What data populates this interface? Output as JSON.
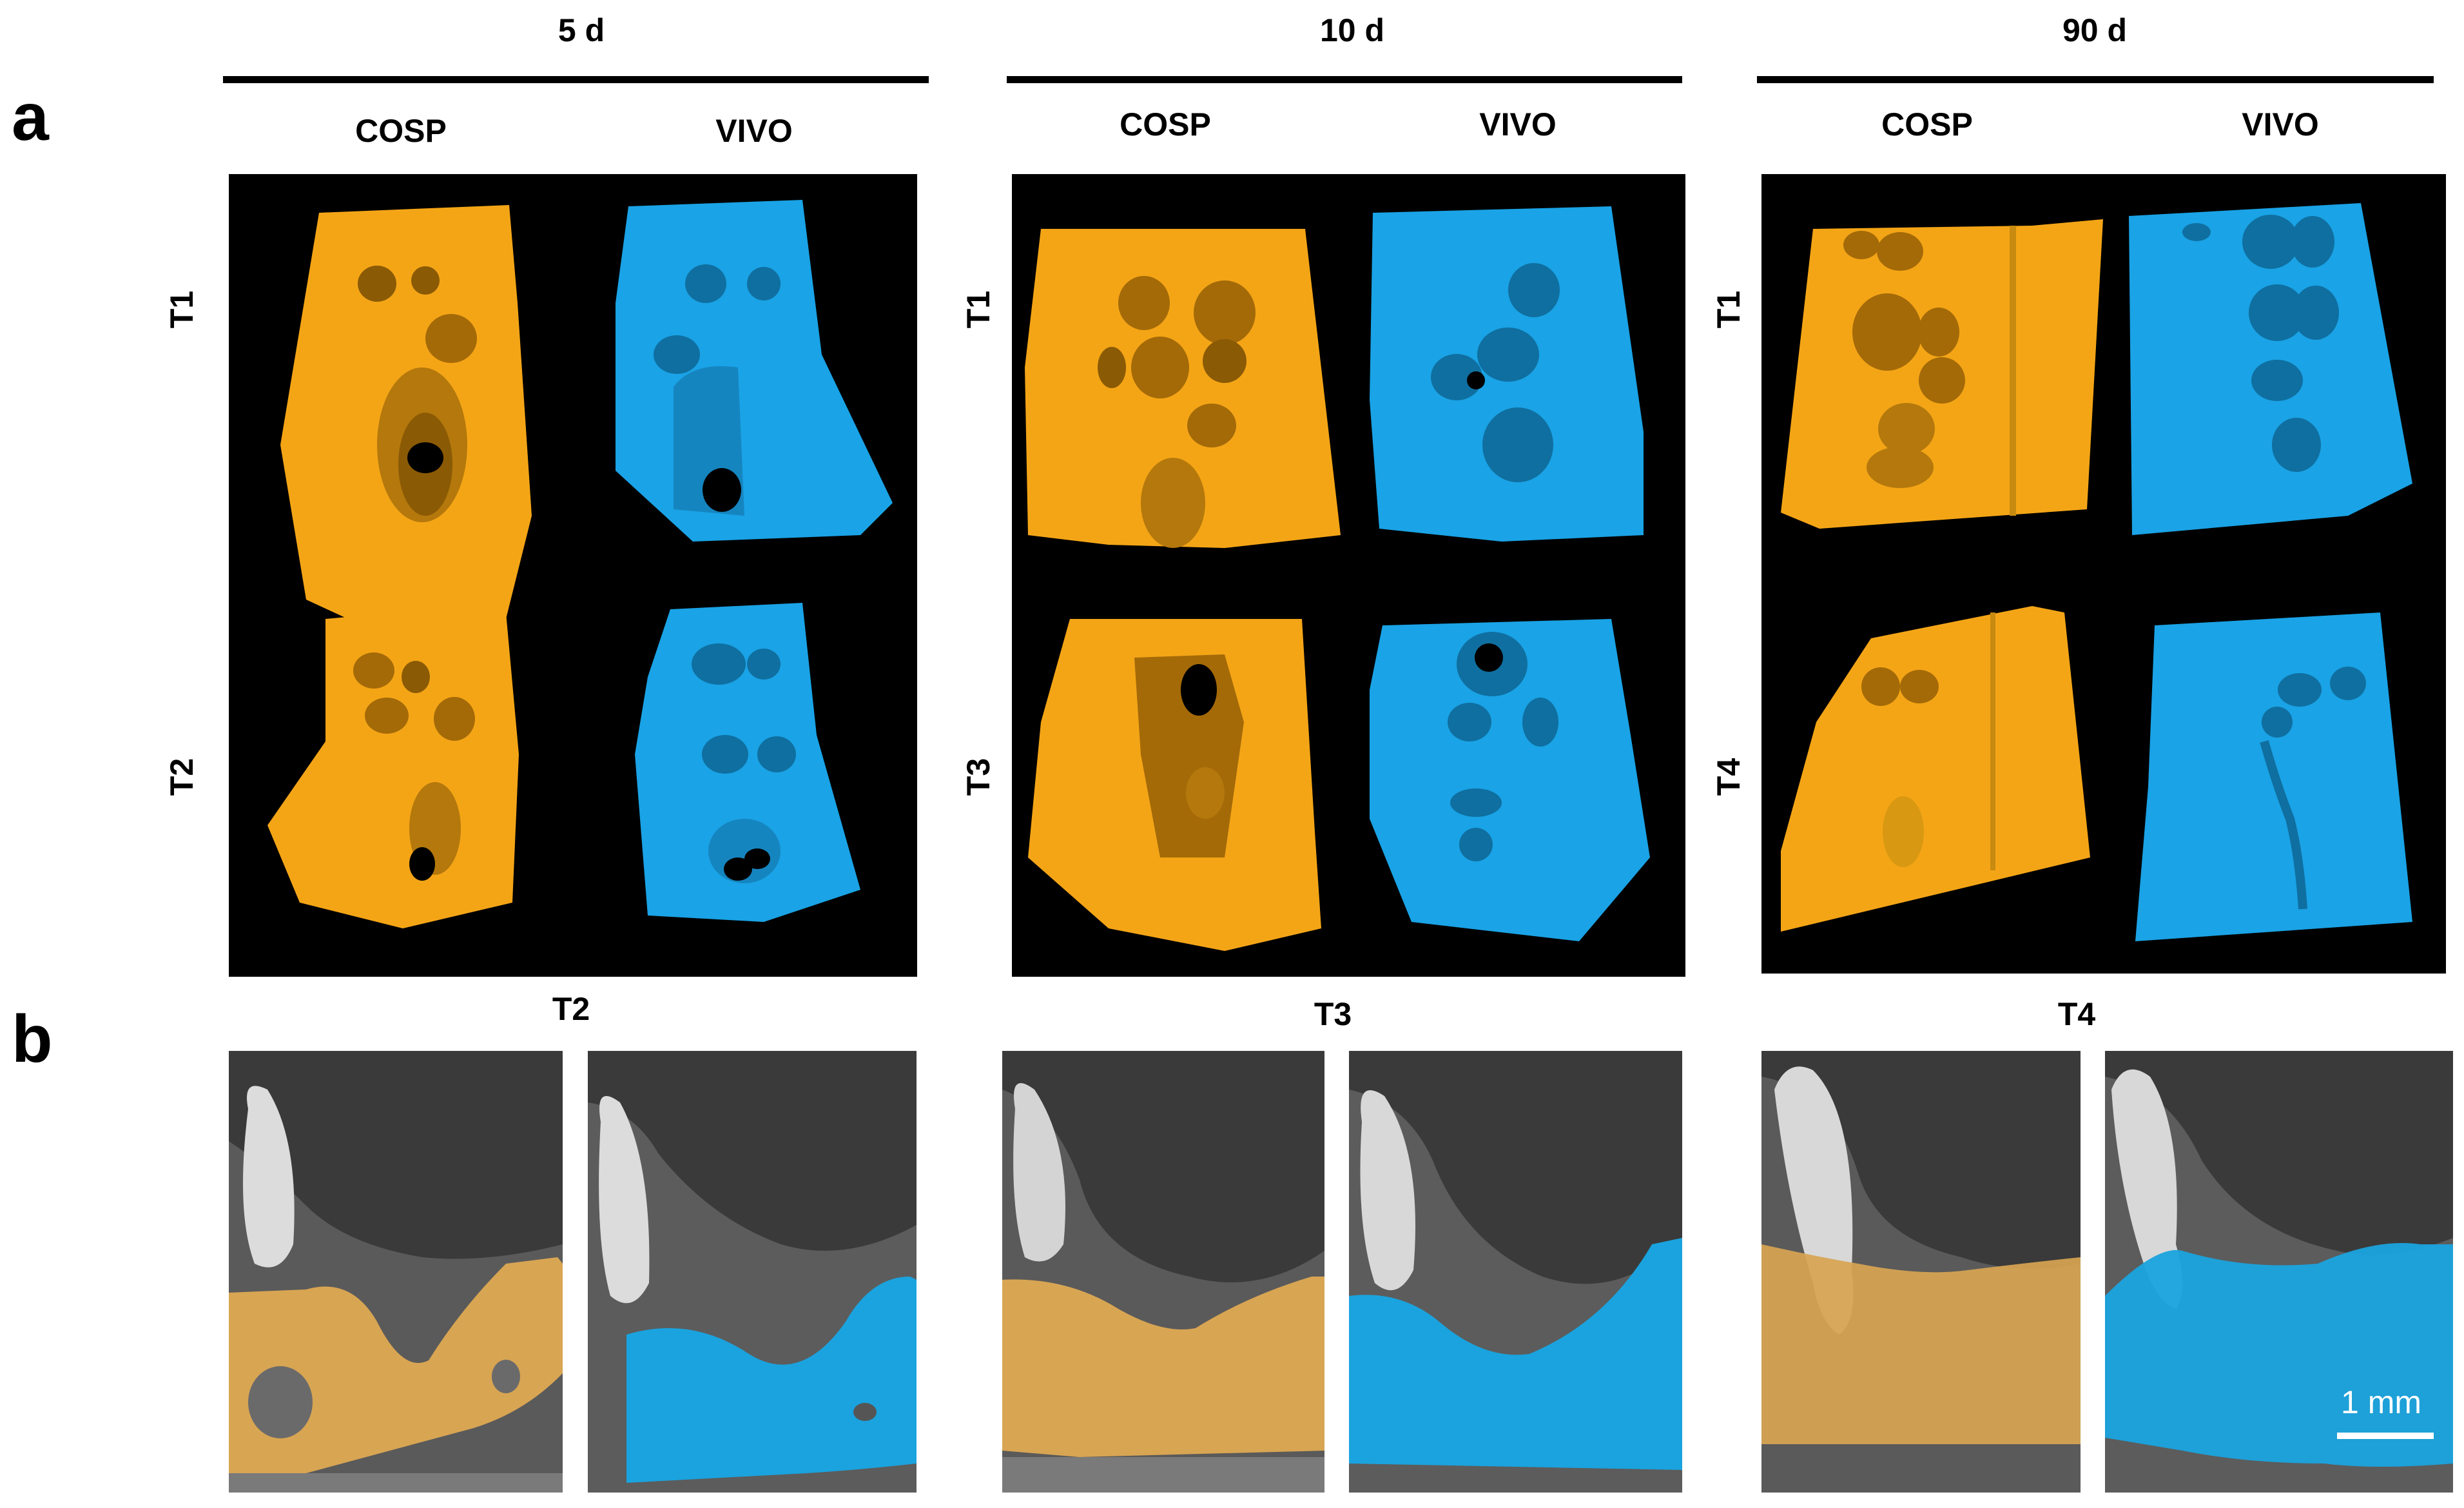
{
  "panels": {
    "a": "a",
    "b": "b"
  },
  "groups": [
    {
      "title": "5 d",
      "col1": "COSP",
      "col2": "VIVO",
      "row1": "T1",
      "row2": "T2"
    },
    {
      "title": "10 d",
      "col1": "COSP",
      "col2": "VIVO",
      "row1": "T1",
      "row2": "T3"
    },
    {
      "title": "90 d",
      "col1": "COSP",
      "col2": "VIVO",
      "row1": "T1",
      "row2": "T4"
    }
  ],
  "ct_titles": [
    "T2",
    "T3",
    "T4"
  ],
  "scale_bar": {
    "label": "1 mm"
  },
  "colors": {
    "cosp": "#f4a516",
    "vivo": "#1aa3e6",
    "background": "#000000"
  }
}
